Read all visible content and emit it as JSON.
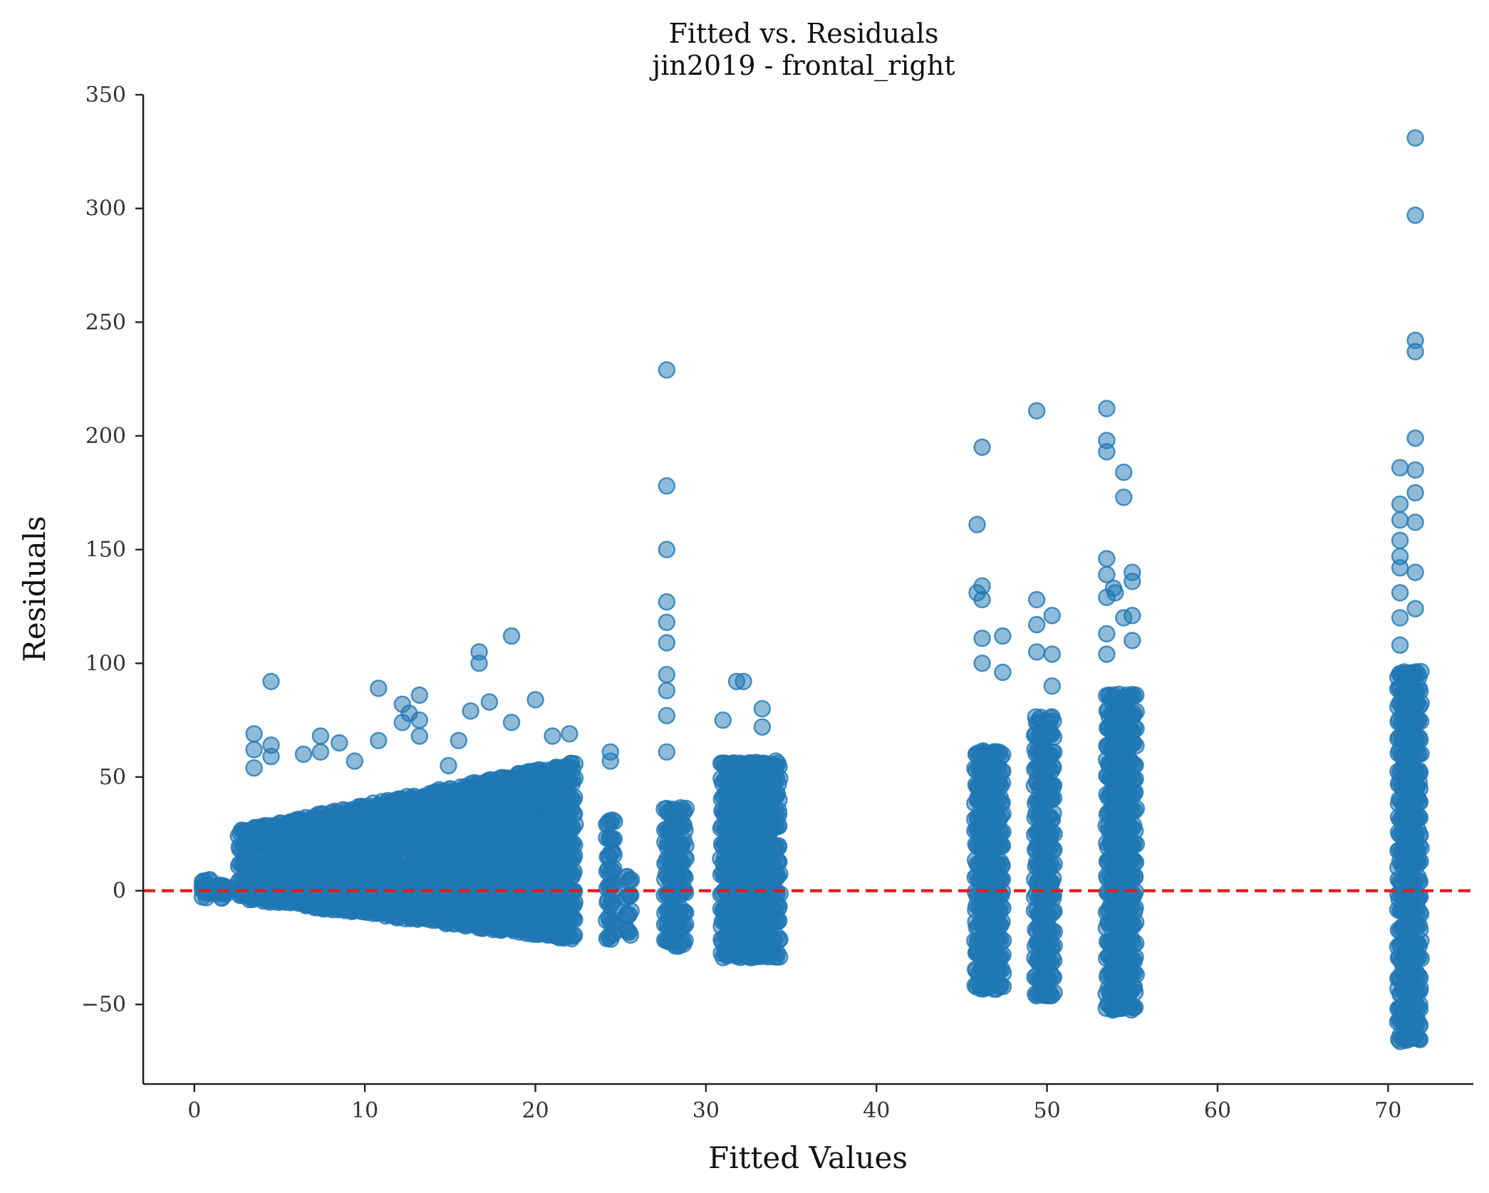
{
  "chart_data": {
    "type": "scatter",
    "title": "Fitted vs. Residuals",
    "subtitle": "jin2019 - frontal_right",
    "xlabel": "Fitted Values",
    "ylabel": "Residuals",
    "xlim": [
      -3,
      75
    ],
    "ylim": [
      -85,
      350
    ],
    "x_ticks": [
      0,
      10,
      20,
      30,
      40,
      50,
      60,
      70
    ],
    "y_ticks": [
      -50,
      0,
      50,
      100,
      150,
      200,
      250,
      300,
      350
    ],
    "x_tick_labels": [
      "0",
      "10",
      "20",
      "30",
      "40",
      "50",
      "60",
      "70"
    ],
    "y_tick_labels": [
      "−50",
      "0",
      "50",
      "100",
      "150",
      "200",
      "250",
      "300",
      "350"
    ],
    "grid": false,
    "point_color": "#1f77b4",
    "reference_line": {
      "y": 0,
      "color": "#e31a1c",
      "style": "dashed"
    },
    "clusters": [
      {
        "x_range": [
          0.5,
          0.9
        ],
        "y_range": [
          -2,
          4
        ]
      },
      {
        "x_range": [
          1.4,
          1.8
        ],
        "y_range": [
          -2,
          3
        ]
      },
      {
        "x_range": [
          2.6,
          22.3
        ],
        "y_range_start": [
          -2,
          25
        ],
        "y_range_end": [
          -20,
          55
        ]
      },
      {
        "x_range": [
          24.2,
          24.6
        ],
        "y_range": [
          -20,
          30
        ]
      },
      {
        "x_range": [
          25.3,
          25.6
        ],
        "y_range": [
          -18,
          5
        ]
      },
      {
        "x_range": [
          27.6,
          28.8
        ],
        "y_range": [
          -23,
          35
        ]
      },
      {
        "x_range": [
          30.9,
          34.3
        ],
        "y_range": [
          -28,
          55
        ]
      },
      {
        "x_range": [
          45.8,
          47.4
        ],
        "y_range": [
          -42,
          60
        ]
      },
      {
        "x_range": [
          49.3,
          50.4
        ],
        "y_range": [
          -45,
          75
        ]
      },
      {
        "x_range": [
          53.5,
          55.2
        ],
        "y_range": [
          -51,
          85
        ]
      },
      {
        "x_range": [
          70.6,
          71.9
        ],
        "y_range": [
          -65,
          95
        ]
      }
    ],
    "outliers": [
      {
        "x": 4.5,
        "y": 92
      },
      {
        "x": 3.5,
        "y": 69
      },
      {
        "x": 3.5,
        "y": 62
      },
      {
        "x": 3.5,
        "y": 54
      },
      {
        "x": 4.5,
        "y": 64
      },
      {
        "x": 4.5,
        "y": 59
      },
      {
        "x": 6.4,
        "y": 60
      },
      {
        "x": 7.4,
        "y": 68
      },
      {
        "x": 7.4,
        "y": 61
      },
      {
        "x": 8.5,
        "y": 65
      },
      {
        "x": 9.4,
        "y": 57
      },
      {
        "x": 10.8,
        "y": 89
      },
      {
        "x": 10.8,
        "y": 66
      },
      {
        "x": 12.2,
        "y": 82
      },
      {
        "x": 12.2,
        "y": 74
      },
      {
        "x": 12.6,
        "y": 78
      },
      {
        "x": 13.2,
        "y": 86
      },
      {
        "x": 13.2,
        "y": 75
      },
      {
        "x": 13.2,
        "y": 68
      },
      {
        "x": 14.9,
        "y": 55
      },
      {
        "x": 15.5,
        "y": 66
      },
      {
        "x": 16.2,
        "y": 79
      },
      {
        "x": 16.7,
        "y": 105
      },
      {
        "x": 16.7,
        "y": 100
      },
      {
        "x": 17.3,
        "y": 83
      },
      {
        "x": 18.6,
        "y": 112
      },
      {
        "x": 18.6,
        "y": 74
      },
      {
        "x": 20.0,
        "y": 84
      },
      {
        "x": 21.0,
        "y": 68
      },
      {
        "x": 22.0,
        "y": 69
      },
      {
        "x": 24.4,
        "y": 61
      },
      {
        "x": 24.4,
        "y": 57
      },
      {
        "x": 27.7,
        "y": 229
      },
      {
        "x": 27.7,
        "y": 178
      },
      {
        "x": 27.7,
        "y": 150
      },
      {
        "x": 27.7,
        "y": 127
      },
      {
        "x": 27.7,
        "y": 118
      },
      {
        "x": 27.7,
        "y": 109
      },
      {
        "x": 27.7,
        "y": 95
      },
      {
        "x": 27.7,
        "y": 88
      },
      {
        "x": 27.7,
        "y": 77
      },
      {
        "x": 27.7,
        "y": 61
      },
      {
        "x": 31.0,
        "y": 75
      },
      {
        "x": 31.8,
        "y": 92
      },
      {
        "x": 32.2,
        "y": 92
      },
      {
        "x": 33.3,
        "y": 80
      },
      {
        "x": 33.3,
        "y": 72
      },
      {
        "x": 34.1,
        "y": 57
      },
      {
        "x": 45.9,
        "y": 161
      },
      {
        "x": 45.9,
        "y": 131
      },
      {
        "x": 46.2,
        "y": 195
      },
      {
        "x": 46.2,
        "y": 134
      },
      {
        "x": 46.2,
        "y": 128
      },
      {
        "x": 46.2,
        "y": 111
      },
      {
        "x": 46.2,
        "y": 100
      },
      {
        "x": 47.4,
        "y": 112
      },
      {
        "x": 47.4,
        "y": 96
      },
      {
        "x": 49.4,
        "y": 211
      },
      {
        "x": 49.4,
        "y": 128
      },
      {
        "x": 49.4,
        "y": 117
      },
      {
        "x": 49.4,
        "y": 105
      },
      {
        "x": 50.3,
        "y": 121
      },
      {
        "x": 50.3,
        "y": 104
      },
      {
        "x": 50.3,
        "y": 90
      },
      {
        "x": 53.5,
        "y": 212
      },
      {
        "x": 53.5,
        "y": 198
      },
      {
        "x": 53.5,
        "y": 193
      },
      {
        "x": 53.5,
        "y": 146
      },
      {
        "x": 53.5,
        "y": 139
      },
      {
        "x": 53.5,
        "y": 129
      },
      {
        "x": 53.9,
        "y": 133
      },
      {
        "x": 54.0,
        "y": 131
      },
      {
        "x": 53.5,
        "y": 113
      },
      {
        "x": 53.5,
        "y": 104
      },
      {
        "x": 54.5,
        "y": 184
      },
      {
        "x": 54.5,
        "y": 173
      },
      {
        "x": 55.0,
        "y": 140
      },
      {
        "x": 55.0,
        "y": 136
      },
      {
        "x": 55.0,
        "y": 121
      },
      {
        "x": 55.0,
        "y": 110
      },
      {
        "x": 54.5,
        "y": 120
      },
      {
        "x": 71.6,
        "y": 331
      },
      {
        "x": 71.6,
        "y": 297
      },
      {
        "x": 71.6,
        "y": 242
      },
      {
        "x": 71.6,
        "y": 237
      },
      {
        "x": 71.6,
        "y": 199
      },
      {
        "x": 71.6,
        "y": 185
      },
      {
        "x": 71.6,
        "y": 175
      },
      {
        "x": 71.6,
        "y": 162
      },
      {
        "x": 71.6,
        "y": 140
      },
      {
        "x": 71.6,
        "y": 124
      },
      {
        "x": 70.7,
        "y": 186
      },
      {
        "x": 70.7,
        "y": 170
      },
      {
        "x": 70.7,
        "y": 163
      },
      {
        "x": 70.7,
        "y": 154
      },
      {
        "x": 70.7,
        "y": 147
      },
      {
        "x": 70.7,
        "y": 142
      },
      {
        "x": 70.7,
        "y": 131
      },
      {
        "x": 70.7,
        "y": 120
      },
      {
        "x": 70.7,
        "y": 108
      }
    ]
  }
}
